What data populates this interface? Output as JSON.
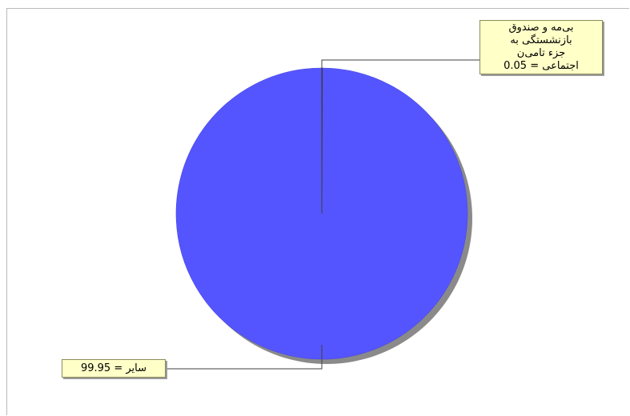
{
  "chart_data": {
    "type": "pie",
    "slices": [
      {
        "label": "بی‌مه و صندوق بازنشستگی به جزء تامین اجتماعی",
        "value": 0.05,
        "callout_lines": [
          "بی‌مه و صندوق",
          "بازنشستگی به",
          "جزء تامی‌ن",
          "اجتماعی = 0.05"
        ]
      },
      {
        "label": "سایر",
        "value": 99.95,
        "callout_text": "سایر = 99.95"
      }
    ],
    "colors": {
      "main_slice": "#5555ff",
      "shadow": "#8a8a8a",
      "callout_fill": "#ffffc8"
    }
  }
}
